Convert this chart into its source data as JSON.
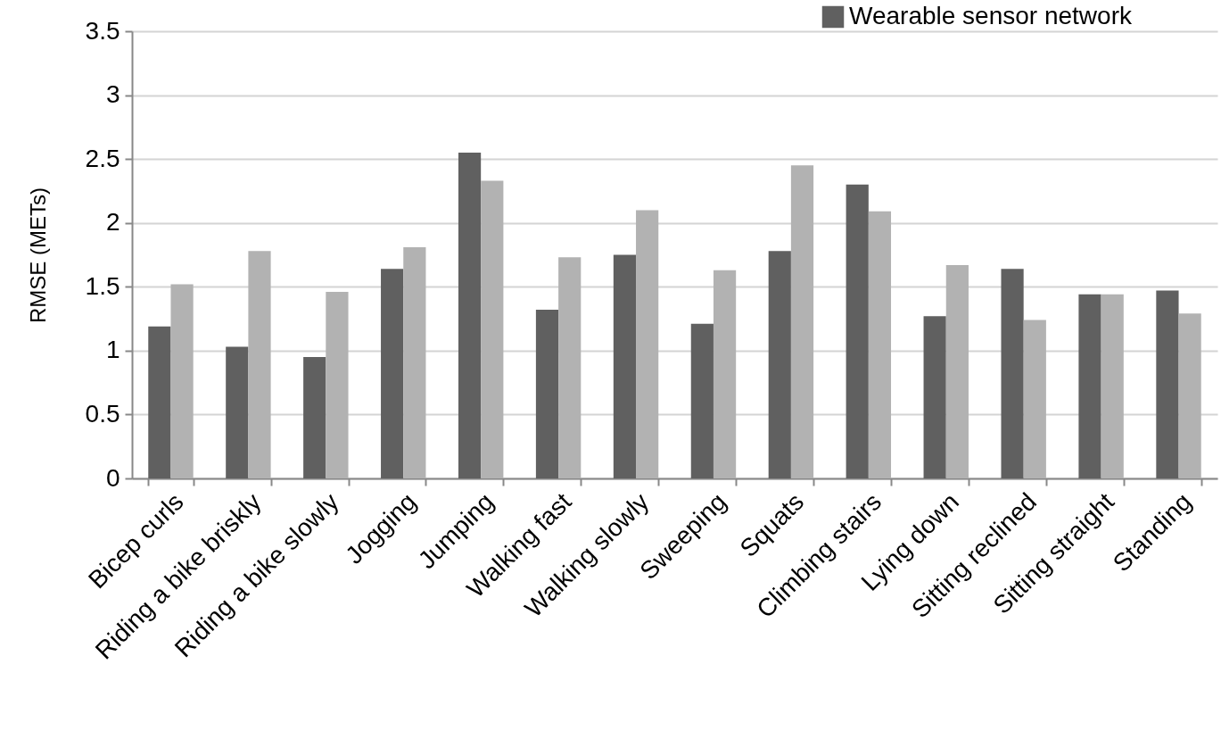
{
  "chart_data": {
    "type": "bar",
    "ylabel": "RMSE (METs)",
    "categories": [
      "Bicep curls",
      "Riding a bike briskly",
      "Riding a bike slowly",
      "Jogging",
      "Jumping",
      "Walking fast",
      "Walking slowly",
      "Sweeping",
      "Squats",
      "Climbing stairs",
      "Lying down",
      "Sitting reclined",
      "Sitting straight",
      "Standing"
    ],
    "series": [
      {
        "name": "Wearable sensor network",
        "color": "#606060",
        "values": [
          1.19,
          1.03,
          0.95,
          1.64,
          2.55,
          1.32,
          1.75,
          1.21,
          1.78,
          2.3,
          1.27,
          1.64,
          1.44,
          1.47
        ]
      },
      {
        "color": "#b2b2b2",
        "values": [
          1.52,
          1.78,
          1.46,
          1.81,
          2.33,
          1.73,
          2.1,
          1.63,
          2.45,
          2.09,
          1.67,
          1.24,
          1.44,
          1.29
        ]
      }
    ],
    "ylim": [
      0,
      3.5
    ],
    "yticks": [
      0,
      0.5,
      1,
      1.5,
      2,
      2.5,
      3,
      3.5
    ],
    "grid": "y",
    "legend": "top right"
  }
}
